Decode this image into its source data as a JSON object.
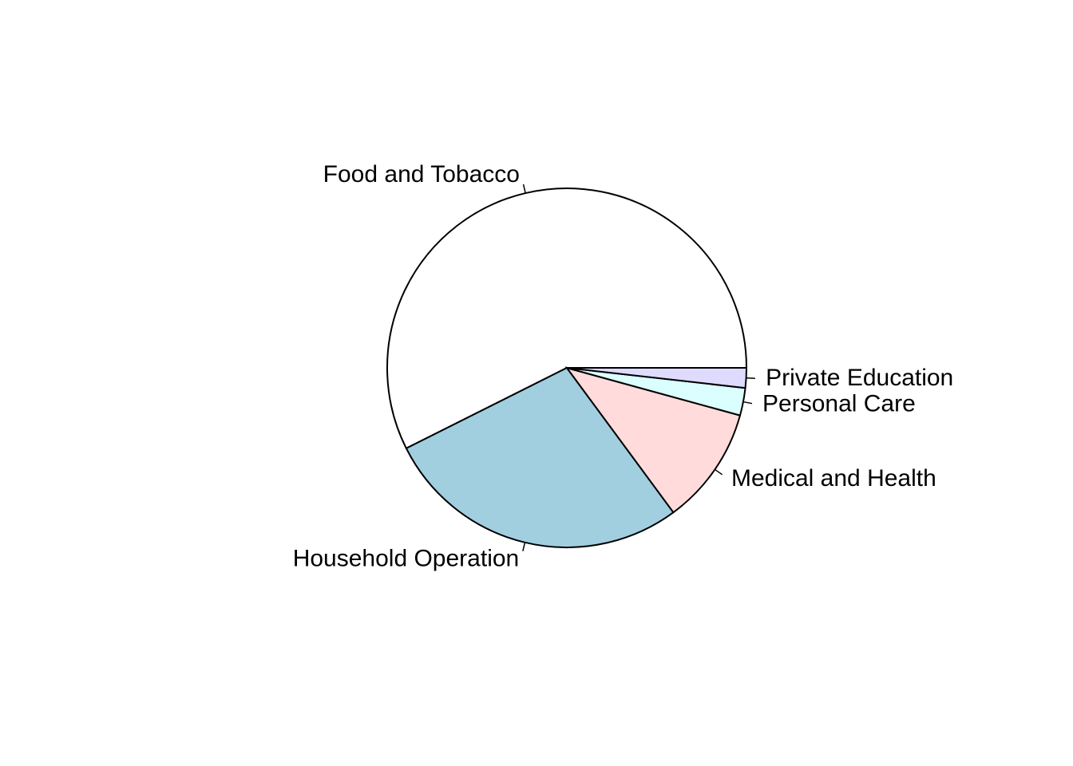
{
  "chart_data": {
    "type": "pie",
    "title": "",
    "slices": [
      {
        "label": "Food and Tobacco",
        "value": 57.8,
        "color": "#ffffff"
      },
      {
        "label": "Household Operation",
        "value": 27.9,
        "color": "#a1cfe0"
      },
      {
        "label": "Medical and Health",
        "value": 10.7,
        "color": "#ffdbdb"
      },
      {
        "label": "Personal Care",
        "value": 2.5,
        "color": "#dbffff"
      },
      {
        "label": "Private Education",
        "value": 1.8,
        "color": "#dedbff"
      }
    ],
    "start": "3 o'clock",
    "direction": "counter-clockwise",
    "legend": "none"
  }
}
